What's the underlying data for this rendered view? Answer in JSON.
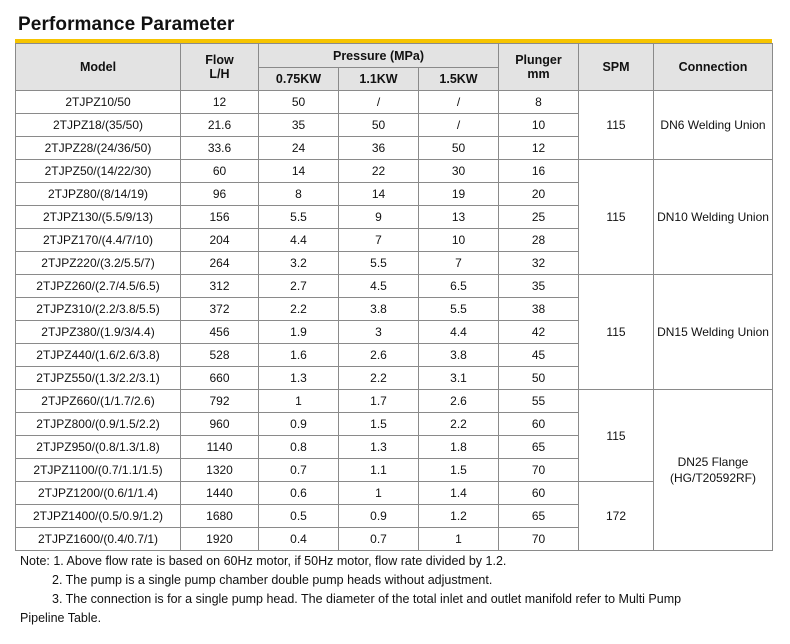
{
  "title": "Performance Parameter",
  "header": {
    "model": "Model",
    "flow_line1": "Flow",
    "flow_line2": "L/H",
    "pressure": "Pressure (MPa)",
    "p1": "0.75KW",
    "p2": "1.1KW",
    "p3": "1.5KW",
    "plunger_line1": "Plunger",
    "plunger_line2": "mm",
    "spm": "SPM",
    "connection": "Connection"
  },
  "rows": [
    {
      "model": "2TJPZ10/50",
      "flow": "12",
      "p1": "50",
      "p2": "/",
      "p3": "/",
      "plunger": "8"
    },
    {
      "model": "2TJPZ18/(35/50)",
      "flow": "21.6",
      "p1": "35",
      "p2": "50",
      "p3": "/",
      "plunger": "10"
    },
    {
      "model": "2TJPZ28/(24/36/50)",
      "flow": "33.6",
      "p1": "24",
      "p2": "36",
      "p3": "50",
      "plunger": "12"
    },
    {
      "model": "2TJPZ50/(14/22/30)",
      "flow": "60",
      "p1": "14",
      "p2": "22",
      "p3": "30",
      "plunger": "16"
    },
    {
      "model": "2TJPZ80/(8/14/19)",
      "flow": "96",
      "p1": "8",
      "p2": "14",
      "p3": "19",
      "plunger": "20"
    },
    {
      "model": "2TJPZ130/(5.5/9/13)",
      "flow": "156",
      "p1": "5.5",
      "p2": "9",
      "p3": "13",
      "plunger": "25"
    },
    {
      "model": "2TJPZ170/(4.4/7/10)",
      "flow": "204",
      "p1": "4.4",
      "p2": "7",
      "p3": "10",
      "plunger": "28"
    },
    {
      "model": "2TJPZ220/(3.2/5.5/7)",
      "flow": "264",
      "p1": "3.2",
      "p2": "5.5",
      "p3": "7",
      "plunger": "32"
    },
    {
      "model": "2TJPZ260/(2.7/4.5/6.5)",
      "flow": "312",
      "p1": "2.7",
      "p2": "4.5",
      "p3": "6.5",
      "plunger": "35"
    },
    {
      "model": "2TJPZ310/(2.2/3.8/5.5)",
      "flow": "372",
      "p1": "2.2",
      "p2": "3.8",
      "p3": "5.5",
      "plunger": "38"
    },
    {
      "model": "2TJPZ380/(1.9/3/4.4)",
      "flow": "456",
      "p1": "1.9",
      "p2": "3",
      "p3": "4.4",
      "plunger": "42"
    },
    {
      "model": "2TJPZ440/(1.6/2.6/3.8)",
      "flow": "528",
      "p1": "1.6",
      "p2": "2.6",
      "p3": "3.8",
      "plunger": "45"
    },
    {
      "model": "2TJPZ550/(1.3/2.2/3.1)",
      "flow": "660",
      "p1": "1.3",
      "p2": "2.2",
      "p3": "3.1",
      "plunger": "50"
    },
    {
      "model": "2TJPZ660/(1/1.7/2.6)",
      "flow": "792",
      "p1": "1",
      "p2": "1.7",
      "p3": "2.6",
      "plunger": "55"
    },
    {
      "model": "2TJPZ800/(0.9/1.5/2.2)",
      "flow": "960",
      "p1": "0.9",
      "p2": "1.5",
      "p3": "2.2",
      "plunger": "60"
    },
    {
      "model": "2TJPZ950/(0.8/1.3/1.8)",
      "flow": "1140",
      "p1": "0.8",
      "p2": "1.3",
      "p3": "1.8",
      "plunger": "65"
    },
    {
      "model": "2TJPZ1100/(0.7/1.1/1.5)",
      "flow": "1320",
      "p1": "0.7",
      "p2": "1.1",
      "p3": "1.5",
      "plunger": "70"
    },
    {
      "model": "2TJPZ1200/(0.6/1/1.4)",
      "flow": "1440",
      "p1": "0.6",
      "p2": "1",
      "p3": "1.4",
      "plunger": "60"
    },
    {
      "model": "2TJPZ1400/(0.5/0.9/1.2)",
      "flow": "1680",
      "p1": "0.5",
      "p2": "0.9",
      "p3": "1.2",
      "plunger": "65"
    },
    {
      "model": "2TJPZ1600/(0.4/0.7/1)",
      "flow": "1920",
      "p1": "0.4",
      "p2": "0.7",
      "p3": "1",
      "plunger": "70"
    }
  ],
  "groups": {
    "spm": [
      "115",
      "115",
      "115",
      "115",
      "172"
    ],
    "connection": [
      "DN6 Welding Union",
      "DN10 Welding Union",
      "DN15 Welding Union",
      "DN25 Flange (HG/T20592RF)"
    ]
  },
  "notes": {
    "n1": "Note: 1. Above flow rate is based on 60Hz motor, if 50Hz motor, flow rate divided by 1.2.",
    "n2": "2. The pump is a single pump chamber double pump heads without adjustment.",
    "n3": "3. The connection is for a single pump head. The diameter of the total inlet and outlet manifold  refer to Multi Pump",
    "n3_cont": "Pipeline Table."
  }
}
